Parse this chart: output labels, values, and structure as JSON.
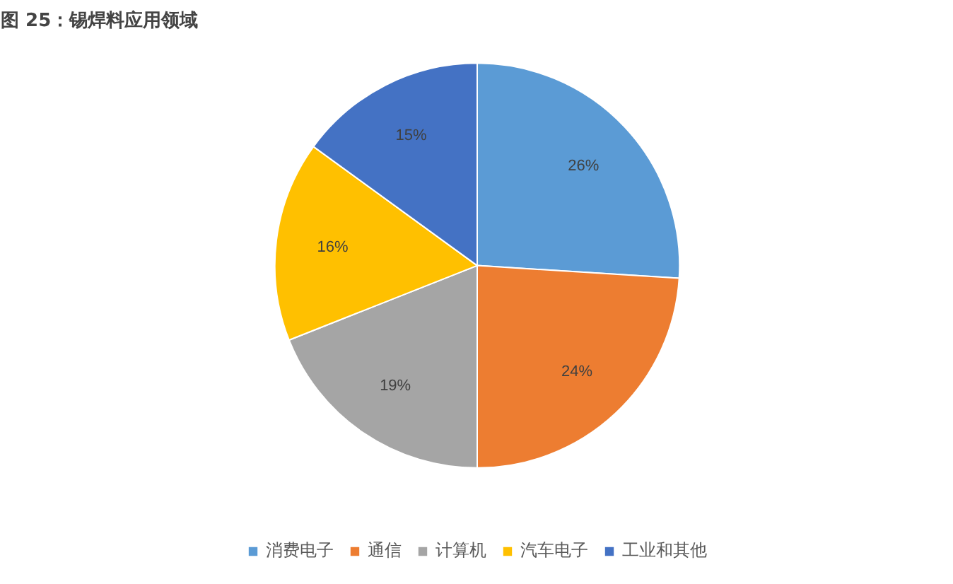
{
  "chart_data": {
    "type": "pie",
    "title": "图 25：锡焊料应用领域",
    "categories": [
      "消费电子",
      "通信",
      "计算机",
      "汽车电子",
      "工业和其他"
    ],
    "values": [
      26,
      24,
      19,
      16,
      15
    ],
    "value_labels": [
      "26%",
      "24%",
      "19%",
      "16%",
      "15%"
    ],
    "colors": [
      "#5b9bd5",
      "#ed7d31",
      "#a5a5a5",
      "#ffc000",
      "#4472c4"
    ],
    "legend": "bottom"
  }
}
